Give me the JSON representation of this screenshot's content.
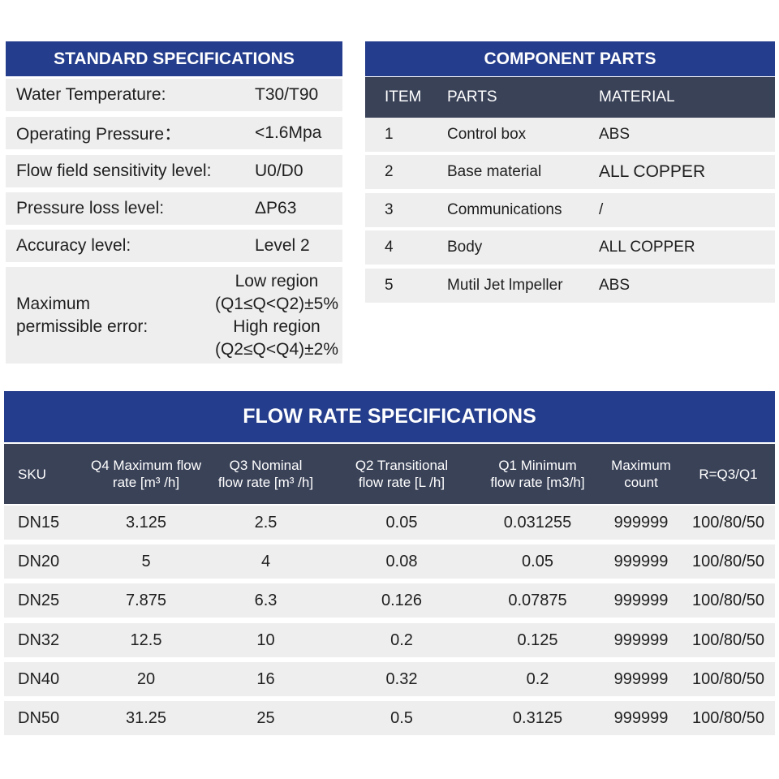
{
  "standard": {
    "title": "STANDARD SPECIFICATIONS",
    "rows": [
      {
        "label": "Water Temperature:",
        "value": "T30/T90"
      },
      {
        "label": "Operating Pressure：",
        "value": "<1.6Mpa"
      },
      {
        "label": "Flow field sensitivity level:",
        "value": "U0/D0"
      },
      {
        "label": "Pressure loss level:",
        "value": "ΔP63"
      },
      {
        "label": "Accuracy level:",
        "value": "Level 2"
      }
    ],
    "error": {
      "label_line1": "Maximum",
      "label_line2": "permissible error:",
      "value_line1": "Low region",
      "value_line2": "(Q1≤Q<Q2)±5%",
      "value_line3": "High region",
      "value_line4": "(Q2≤Q<Q4)±2%"
    }
  },
  "components": {
    "title": "COMPONENT PARTS",
    "headers": {
      "item": "ITEM",
      "parts": "PARTS",
      "material": "MATERIAL"
    },
    "rows": [
      {
        "item": "1",
        "part": "Control box",
        "material": "ABS"
      },
      {
        "item": "2",
        "part": "Base material",
        "material": "ALL COPPER"
      },
      {
        "item": "3",
        "part": "Communications",
        "material": "/"
      },
      {
        "item": "4",
        "part": "Body",
        "material": "ALL COPPER"
      },
      {
        "item": "5",
        "part": "Mutil Jet lmpeller",
        "material": "ABS"
      }
    ]
  },
  "flow": {
    "title": "FLOW RATE SPECIFICATIONS",
    "headers": {
      "sku": "SKU",
      "q4_line1": "Q4 Maximum flow",
      "q4_line2": "rate [m³ /h]",
      "q3_line1": "Q3 Nominal",
      "q3_line2": "flow rate [m³ /h]",
      "q2_line1": "Q2 Transitional",
      "q2_line2": "flow rate [L /h]",
      "q1_line1": "Q1 Minimum",
      "q1_line2": "flow rate [m3/h]",
      "max_line1": "Maximum",
      "max_line2": "count",
      "r": "R=Q3/Q1"
    },
    "rows": [
      {
        "sku": "DN15",
        "q4": "3.125",
        "q3": "2.5",
        "q2": "0.05",
        "q1": "0.031255",
        "max": "999999",
        "r": "100/80/50"
      },
      {
        "sku": "DN20",
        "q4": "5",
        "q3": "4",
        "q2": "0.08",
        "q1": "0.05",
        "max": "999999",
        "r": "100/80/50"
      },
      {
        "sku": "DN25",
        "q4": "7.875",
        "q3": "6.3",
        "q2": "0.126",
        "q1": "0.07875",
        "max": "999999",
        "r": "100/80/50"
      },
      {
        "sku": "DN32",
        "q4": "12.5",
        "q3": "10",
        "q2": "0.2",
        "q1": "0.125",
        "max": "999999",
        "r": "100/80/50"
      },
      {
        "sku": "DN40",
        "q4": "20",
        "q3": "16",
        "q2": "0.32",
        "q1": "0.2",
        "max": "999999",
        "r": "100/80/50"
      },
      {
        "sku": "DN50",
        "q4": "31.25",
        "q3": "25",
        "q2": "0.5",
        "q1": "0.3125",
        "max": "999999",
        "r": "100/80/50"
      }
    ]
  },
  "colors": {
    "title_bar": "#243d8c",
    "header_bar": "#3a4258",
    "row_bg": "#eeeeee"
  }
}
